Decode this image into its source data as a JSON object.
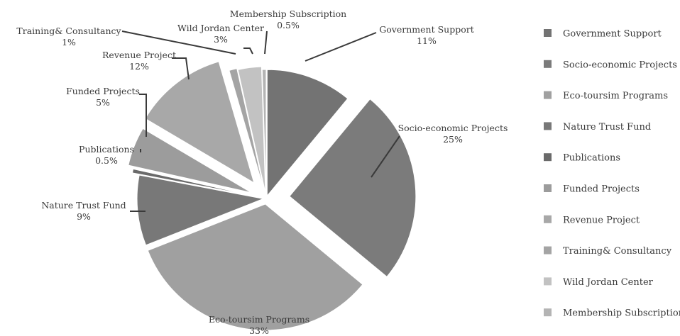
{
  "chart_data": {
    "type": "pie",
    "title": "",
    "slices": [
      {
        "label": "Government Support",
        "value": 11,
        "display": "11%",
        "color": "#737373"
      },
      {
        "label": "Socio-economic Projects",
        "value": 25,
        "display": "25%",
        "color": "#7b7b7b"
      },
      {
        "label": "Eco-toursim Programs",
        "value": 33,
        "display": "33%",
        "color": "#a0a0a0"
      },
      {
        "label": "Nature Trust Fund",
        "value": 9,
        "display": "9%",
        "color": "#787878"
      },
      {
        "label": "Publications",
        "value": 0.5,
        "display": "0.5%",
        "color": "#6a6a6a"
      },
      {
        "label": "Funded Projects",
        "value": 5,
        "display": "5%",
        "color": "#9c9c9c"
      },
      {
        "label": "Revenue Project",
        "value": 12,
        "display": "12%",
        "color": "#a8a8a8"
      },
      {
        "label": "Training& Consultancy",
        "value": 1,
        "display": "1%",
        "color": "#a4a4a4"
      },
      {
        "label": "Wild Jordan Center",
        "value": 3,
        "display": "3%",
        "color": "#c2c2c2"
      },
      {
        "label": "Membership Subscription",
        "value": 0.5,
        "display": "0.5%",
        "color": "#b4b4b4"
      }
    ],
    "legend_position": "right",
    "label_line_color": "#3a3a3a"
  }
}
